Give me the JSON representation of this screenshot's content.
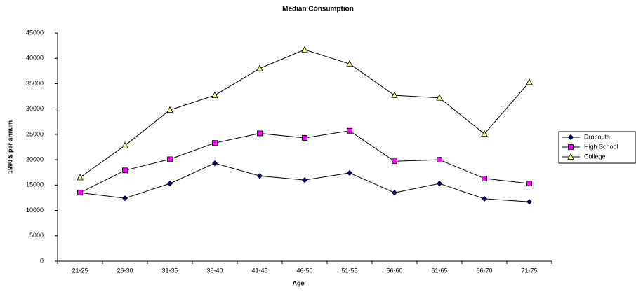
{
  "chart_data": {
    "type": "line",
    "title": "Median Consumption",
    "x_label": "Age",
    "y_label": "1990 $ per annum",
    "categories": [
      "21-25",
      "26-30",
      "31-35",
      "36-40",
      "41-45",
      "46-50",
      "51-55",
      "56-60",
      "61-65",
      "66-70",
      "71-75"
    ],
    "series": [
      {
        "name": "Dropouts",
        "color": "#000080",
        "marker": "diamond",
        "values": [
          13500,
          12400,
          15300,
          19300,
          16800,
          16000,
          17400,
          13500,
          15300,
          12300,
          11700
        ]
      },
      {
        "name": "High School",
        "color": "#ff00ff",
        "marker": "square",
        "values": [
          13500,
          17900,
          20100,
          23300,
          25200,
          24300,
          25700,
          19700,
          20000,
          16300,
          15300
        ]
      },
      {
        "name": "College",
        "color": "#ffff99",
        "marker": "triangle",
        "values": [
          16500,
          22800,
          29800,
          32700,
          38000,
          41700,
          38900,
          32700,
          32200,
          25100,
          35300
        ]
      }
    ],
    "ylim": [
      0,
      45000
    ],
    "yticks": [
      0,
      5000,
      10000,
      15000,
      20000,
      25000,
      30000,
      35000,
      40000,
      45000
    ],
    "grid": false,
    "legend": "right"
  }
}
